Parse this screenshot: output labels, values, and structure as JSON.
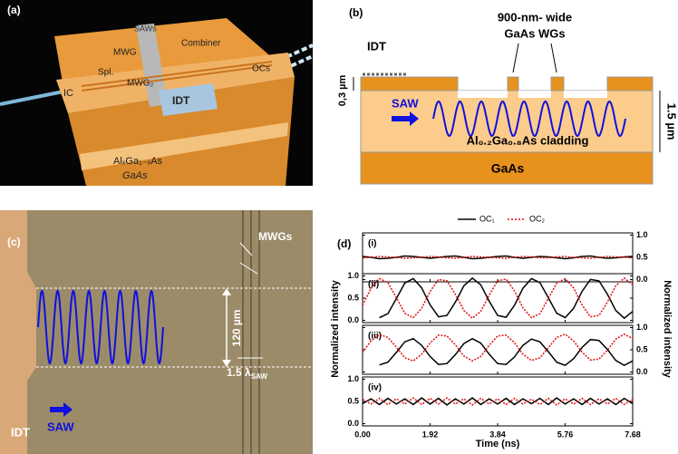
{
  "panel_a": {
    "label": "(a)",
    "saws": "SAWs",
    "mwg1": "MWG",
    "combiner": "Combiner",
    "spl": "Spl.",
    "mwg2": "MWG₂",
    "ocs": "OCs",
    "ic": "IC",
    "idt": "IDT",
    "alloy": "AlₓGa₁₋ₓAs",
    "substrate": "GaAs"
  },
  "panel_b": {
    "label": "(b)",
    "idt": "IDT",
    "wg_line1": "900-nm- wide",
    "wg_line2": "GaAs WGs",
    "thickness": "0,3 µm",
    "depth": "1.5 µm",
    "saw": "SAW",
    "cladding": "Al₀.₂Ga₀.₈As cladding",
    "substrate": "GaAs"
  },
  "panel_c": {
    "label": "(c)",
    "mwgs": "MWGs",
    "width": "120 µm",
    "lambda": "1.5 λ",
    "lambda_sub": "SAW",
    "idt": "IDT",
    "saw": "SAW"
  },
  "chart_data": {
    "type": "line",
    "label": "(d)",
    "xlabel": "Time (ns)",
    "ylabel": "Normalized intensity",
    "y2label": "Normalized intensity",
    "series": [
      {
        "name": "OC₁",
        "color": "#000000",
        "dash": "solid"
      },
      {
        "name": "OC₂",
        "color": "#e01010",
        "dash": "dotted"
      }
    ],
    "x": [
      0,
      0.24,
      0.48,
      0.72,
      0.96,
      1.2,
      1.44,
      1.68,
      1.92,
      2.16,
      2.4,
      2.64,
      2.88,
      3.12,
      3.36,
      3.6,
      3.84,
      4.08,
      4.32,
      4.56,
      4.8,
      5.04,
      5.28,
      5.52,
      5.76,
      6.0,
      6.24,
      6.48,
      6.72,
      6.96,
      7.2,
      7.44,
      7.68
    ],
    "xlim": [
      0,
      7.68
    ],
    "xticks": [
      {
        "value": 0,
        "label": "0.00"
      },
      {
        "value": 1.92,
        "label": "1.92"
      },
      {
        "value": 3.84,
        "label": "3.84"
      },
      {
        "value": 5.76,
        "label": "5.76"
      },
      {
        "value": 7.68,
        "label": "7.68"
      }
    ],
    "ylim": [
      -0.05,
      1.05
    ],
    "yticks": [
      {
        "value": 0,
        "label": "0.0"
      },
      {
        "value": 0.5,
        "label": "0.5"
      },
      {
        "value": 1,
        "label": "1.0"
      }
    ],
    "subplots": [
      {
        "label": "(i)",
        "ytick_side": "right",
        "values": [
          [
            0.52,
            0.5,
            0.47,
            0.48,
            0.5,
            0.53,
            0.52,
            0.5,
            0.48,
            0.5,
            0.52,
            0.53,
            0.5,
            0.47,
            0.48,
            0.5,
            0.52,
            0.53,
            0.5,
            0.48,
            0.5,
            0.52,
            0.51,
            0.49,
            0.47,
            0.49,
            0.52,
            0.53,
            0.5,
            0.48,
            0.49,
            0.51,
            0.52
          ],
          [
            0.49,
            0.5,
            0.52,
            0.51,
            0.5,
            0.48,
            0.49,
            0.5,
            0.52,
            0.51,
            0.49,
            0.48,
            0.5,
            0.52,
            0.51,
            0.5,
            0.49,
            0.48,
            0.5,
            0.52,
            0.51,
            0.49,
            0.49,
            0.51,
            0.52,
            0.5,
            0.49,
            0.48,
            0.5,
            0.52,
            0.51,
            0.5,
            0.49
          ]
        ]
      },
      {
        "label": "(ii)",
        "ytick_side": "left",
        "values": [
          [
            null,
            null,
            0.06,
            0.15,
            0.49,
            0.84,
            0.94,
            0.73,
            0.35,
            0.08,
            0.11,
            0.41,
            0.78,
            0.95,
            0.8,
            0.43,
            0.11,
            0.07,
            0.34,
            0.72,
            0.94,
            0.85,
            0.51,
            0.16,
            0.06,
            0.27,
            0.65,
            0.92,
            0.89,
            0.59,
            0.22,
            0.05,
            0.2
          ],
          [
            0.34,
            0.72,
            0.94,
            0.85,
            0.51,
            0.16,
            0.06,
            0.27,
            0.65,
            0.92,
            0.89,
            0.59,
            0.22,
            0.05,
            0.2,
            0.57,
            0.89,
            0.93,
            0.66,
            0.28,
            0.06,
            0.15,
            0.49,
            0.84,
            0.94,
            0.73,
            0.35,
            0.08,
            0.11,
            0.41,
            0.78,
            0.95,
            0.8
          ]
        ]
      },
      {
        "label": "(iii)",
        "ytick_side": "right",
        "values": [
          [
            null,
            null,
            0.16,
            0.22,
            0.44,
            0.68,
            0.75,
            0.6,
            0.35,
            0.17,
            0.19,
            0.39,
            0.64,
            0.75,
            0.65,
            0.4,
            0.19,
            0.17,
            0.34,
            0.6,
            0.74,
            0.68,
            0.46,
            0.22,
            0.15,
            0.3,
            0.55,
            0.73,
            0.71,
            0.51,
            0.26,
            0.15,
            0.25
          ],
          [
            0.44,
            0.7,
            0.84,
            0.78,
            0.56,
            0.32,
            0.25,
            0.4,
            0.65,
            0.83,
            0.81,
            0.61,
            0.36,
            0.25,
            0.35,
            0.6,
            0.81,
            0.83,
            0.66,
            0.4,
            0.26,
            0.32,
            0.54,
            0.78,
            0.85,
            0.7,
            0.45,
            0.27,
            0.29,
            0.49,
            0.74,
            0.85,
            0.75
          ]
        ]
      },
      {
        "label": "(iv)",
        "ytick_side": "left",
        "values": [
          [
            0.45,
            0.56,
            0.43,
            0.57,
            0.44,
            0.56,
            0.43,
            0.58,
            0.44,
            0.57,
            0.42,
            0.56,
            0.44,
            0.58,
            0.43,
            0.56,
            0.44,
            0.57,
            0.43,
            0.56,
            0.45,
            0.57,
            0.43,
            0.58,
            0.44,
            0.56,
            0.43,
            0.57,
            0.44,
            0.56,
            0.43,
            0.57,
            0.45
          ],
          [
            0.55,
            0.44,
            0.57,
            0.43,
            0.56,
            0.44,
            0.58,
            0.43,
            0.57,
            0.44,
            0.58,
            0.44,
            0.56,
            0.42,
            0.57,
            0.44,
            0.56,
            0.43,
            0.57,
            0.44,
            0.55,
            0.43,
            0.57,
            0.42,
            0.56,
            0.44,
            0.57,
            0.43,
            0.56,
            0.44,
            0.57,
            0.43,
            0.55
          ]
        ]
      }
    ]
  }
}
